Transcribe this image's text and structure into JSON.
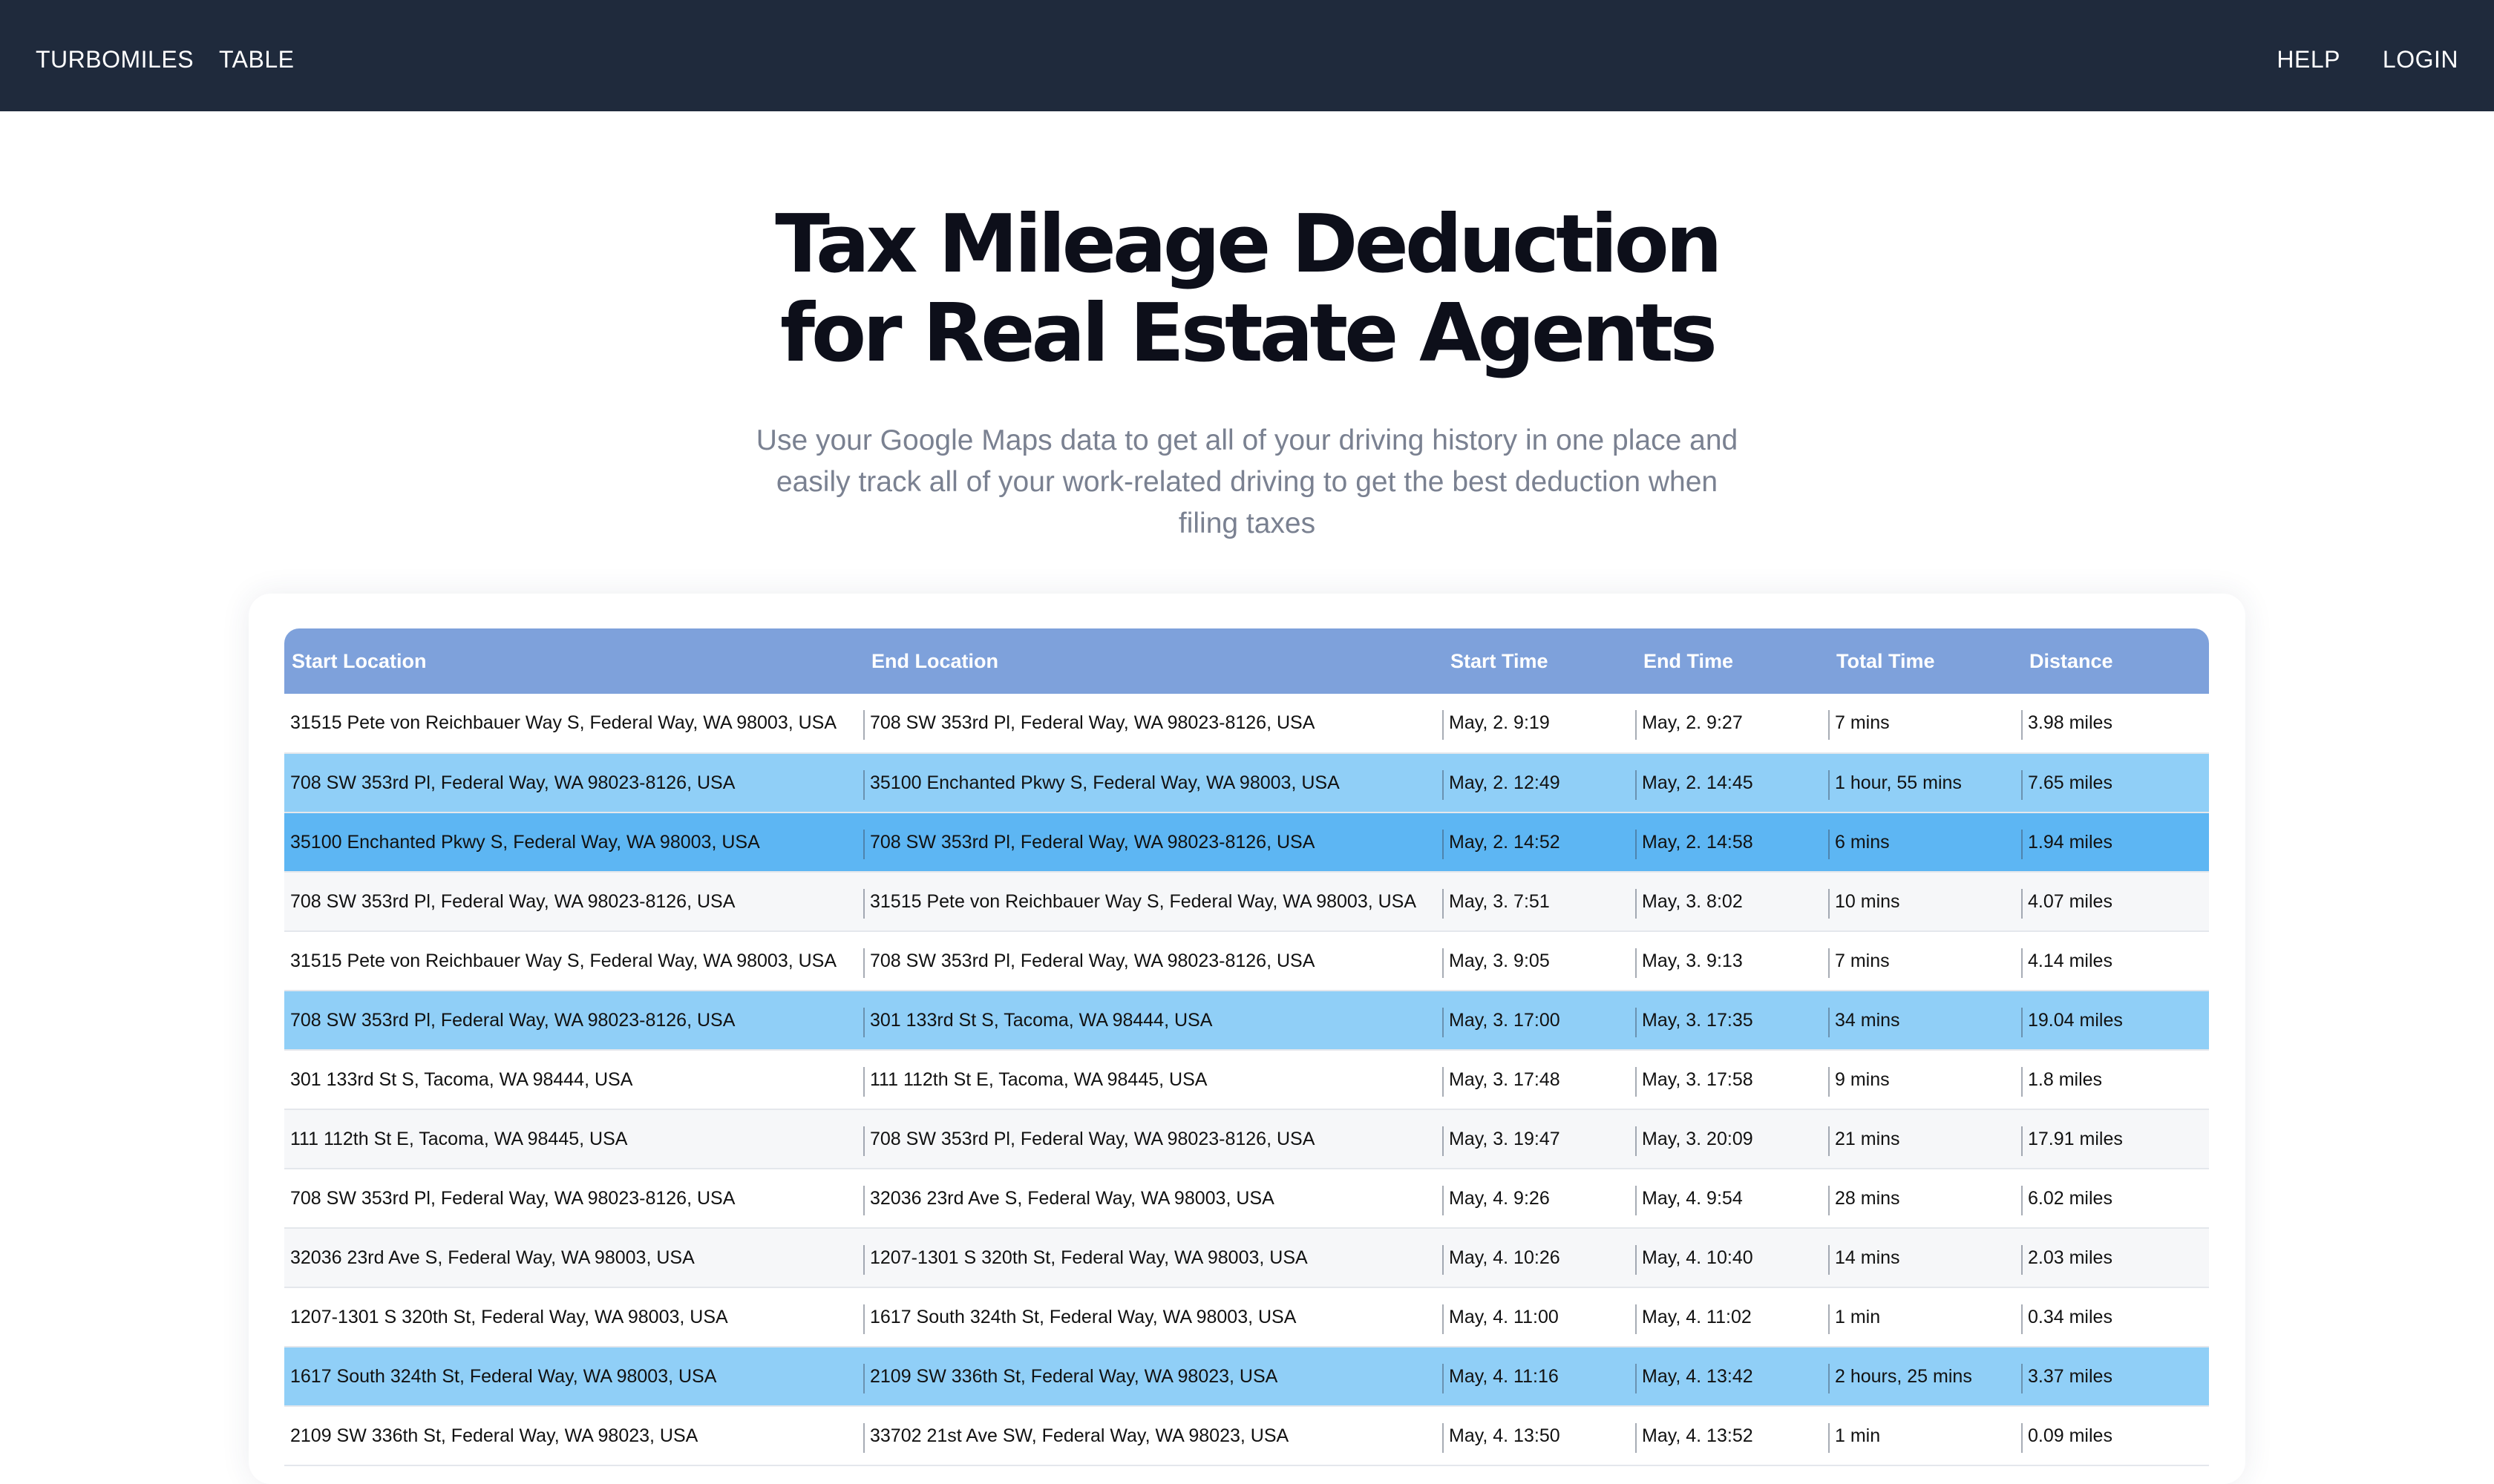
{
  "nav": {
    "brand": "TURBOMILES",
    "table": "TABLE",
    "help": "HELP",
    "login": "LOGIN"
  },
  "hero": {
    "title_line1": "Tax Mileage Deduction",
    "title_line2": "for Real Estate Agents",
    "subtitle": "Use your Google Maps data to get all of your driving history in one place and easily track all of your work-related driving to get the best deduction when filing taxes"
  },
  "colors": {
    "navbar": "#1f2a3c",
    "header_row": "#7ea1db",
    "highlight_row": "#90cff7",
    "highlight_row_strong": "#5db6f3"
  },
  "table": {
    "columns": [
      "Start Location",
      "End Location",
      "Start Time",
      "End Time",
      "Total Time",
      "Distance"
    ],
    "rows": [
      {
        "start": "31515 Pete von Reichbauer Way S, Federal Way, WA 98003, USA",
        "end": "708 SW 353rd Pl, Federal Way, WA 98023-8126, USA",
        "start_time": "May, 2. 9:19",
        "end_time": "May, 2. 9:27",
        "total": "7 mins",
        "distance": "3.98 miles",
        "style": "plain"
      },
      {
        "start": "708 SW 353rd Pl, Federal Way, WA 98023-8126, USA",
        "end": "35100 Enchanted Pkwy S, Federal Way, WA 98003, USA",
        "start_time": "May, 2. 12:49",
        "end_time": "May, 2. 14:45",
        "total": "1 hour, 55 mins",
        "distance": "7.65 miles",
        "style": "hl"
      },
      {
        "start": "35100 Enchanted Pkwy S, Federal Way, WA 98003, USA",
        "end": "708 SW 353rd Pl, Federal Way, WA 98023-8126, USA",
        "start_time": "May, 2. 14:52",
        "end_time": "May, 2. 14:58",
        "total": "6 mins",
        "distance": "1.94 miles",
        "style": "hl2"
      },
      {
        "start": "708 SW 353rd Pl, Federal Way, WA 98023-8126, USA",
        "end": "31515 Pete von Reichbauer Way S, Federal Way, WA 98003, USA",
        "start_time": "May, 3. 7:51",
        "end_time": "May, 3. 8:02",
        "total": "10 mins",
        "distance": "4.07 miles",
        "style": "alt"
      },
      {
        "start": "31515 Pete von Reichbauer Way S, Federal Way, WA 98003, USA",
        "end": "708 SW 353rd Pl, Federal Way, WA 98023-8126, USA",
        "start_time": "May, 3. 9:05",
        "end_time": "May, 3. 9:13",
        "total": "7 mins",
        "distance": "4.14 miles",
        "style": "plain"
      },
      {
        "start": "708 SW 353rd Pl, Federal Way, WA 98023-8126, USA",
        "end": "301 133rd St S, Tacoma, WA 98444, USA",
        "start_time": "May, 3. 17:00",
        "end_time": "May, 3. 17:35",
        "total": "34 mins",
        "distance": "19.04 miles",
        "style": "hl"
      },
      {
        "start": "301 133rd St S, Tacoma, WA 98444, USA",
        "end": "111 112th St E, Tacoma, WA 98445, USA",
        "start_time": "May, 3. 17:48",
        "end_time": "May, 3. 17:58",
        "total": "9 mins",
        "distance": "1.8 miles",
        "style": "plain"
      },
      {
        "start": "111 112th St E, Tacoma, WA 98445, USA",
        "end": "708 SW 353rd Pl, Federal Way, WA 98023-8126, USA",
        "start_time": "May, 3. 19:47",
        "end_time": "May, 3. 20:09",
        "total": "21 mins",
        "distance": "17.91 miles",
        "style": "alt"
      },
      {
        "start": "708 SW 353rd Pl, Federal Way, WA 98023-8126, USA",
        "end": "32036 23rd Ave S, Federal Way, WA 98003, USA",
        "start_time": "May, 4. 9:26",
        "end_time": "May, 4. 9:54",
        "total": "28 mins",
        "distance": "6.02 miles",
        "style": "plain"
      },
      {
        "start": "32036 23rd Ave S, Federal Way, WA 98003, USA",
        "end": "1207-1301 S 320th St, Federal Way, WA 98003, USA",
        "start_time": "May, 4. 10:26",
        "end_time": "May, 4. 10:40",
        "total": "14 mins",
        "distance": "2.03 miles",
        "style": "alt"
      },
      {
        "start": "1207-1301 S 320th St, Federal Way, WA 98003, USA",
        "end": "1617 South 324th St, Federal Way, WA 98003, USA",
        "start_time": "May, 4. 11:00",
        "end_time": "May, 4. 11:02",
        "total": "1 min",
        "distance": "0.34 miles",
        "style": "plain"
      },
      {
        "start": "1617 South 324th St, Federal Way, WA 98003, USA",
        "end": "2109 SW 336th St, Federal Way, WA 98023, USA",
        "start_time": "May, 4. 11:16",
        "end_time": "May, 4. 13:42",
        "total": "2 hours, 25 mins",
        "distance": "3.37 miles",
        "style": "hl"
      },
      {
        "start": "2109 SW 336th St, Federal Way, WA 98023, USA",
        "end": "33702 21st Ave SW, Federal Way, WA 98023, USA",
        "start_time": "May, 4. 13:50",
        "end_time": "May, 4. 13:52",
        "total": "1 min",
        "distance": "0.09 miles",
        "style": "plain"
      }
    ]
  }
}
